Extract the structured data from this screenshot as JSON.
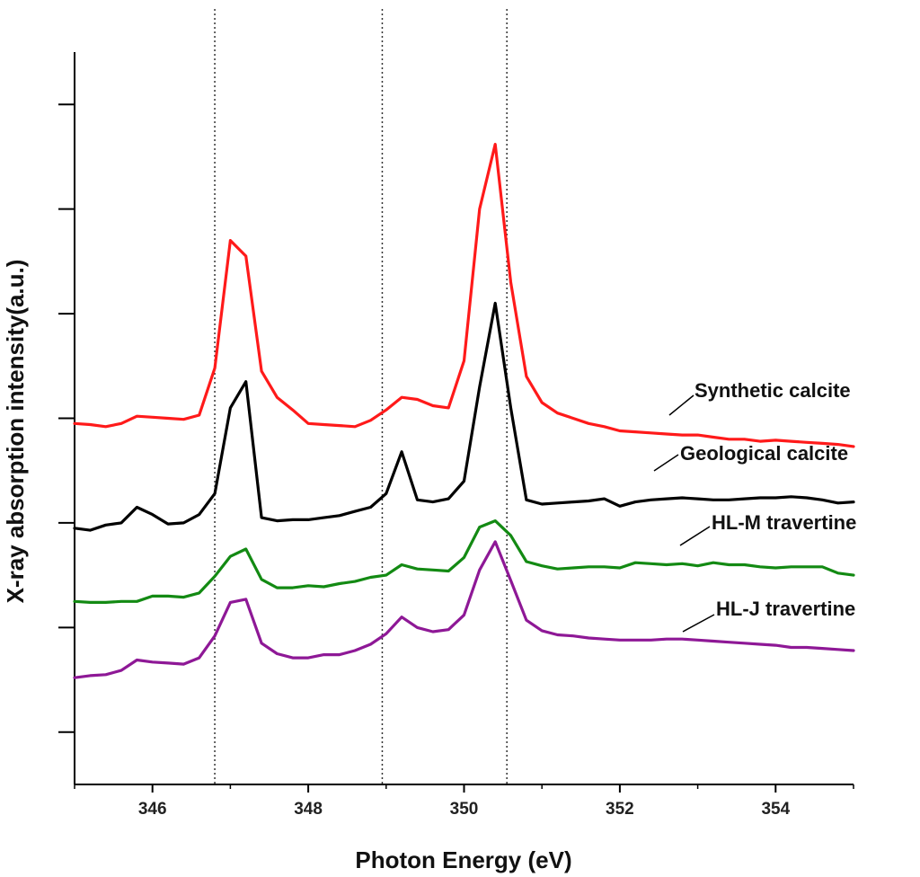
{
  "chart_data": {
    "type": "line",
    "title": "",
    "xlabel": "Photon Energy (eV)",
    "ylabel": "X-ray absorption intensity(a.u.)",
    "xlim": [
      345,
      355
    ],
    "ylim": [
      0,
      7
    ],
    "xticks": [
      346,
      348,
      350,
      352,
      354
    ],
    "yticks": [
      0.5,
      1.5,
      2.5,
      3.5,
      4.5,
      5.5,
      6.5
    ],
    "reference_lines_x": [
      346.8,
      348.95,
      350.55
    ],
    "grid": false,
    "legend": "inline-right",
    "x": [
      345.0,
      345.2,
      345.4,
      345.6,
      345.8,
      346.0,
      346.2,
      346.4,
      346.6,
      346.8,
      347.0,
      347.2,
      347.4,
      347.6,
      347.8,
      348.0,
      348.2,
      348.4,
      348.6,
      348.8,
      349.0,
      349.2,
      349.4,
      349.6,
      349.8,
      350.0,
      350.2,
      350.4,
      350.6,
      350.8,
      351.0,
      351.2,
      351.4,
      351.6,
      351.8,
      352.0,
      352.2,
      352.4,
      352.6,
      352.8,
      353.0,
      353.2,
      353.4,
      353.6,
      353.8,
      354.0,
      354.2,
      354.4,
      354.6,
      354.8,
      355.0
    ],
    "series": [
      {
        "name": "Synthetic calcite",
        "color": "#ff1a1a",
        "values": [
          3.45,
          3.44,
          3.42,
          3.45,
          3.52,
          3.51,
          3.5,
          3.49,
          3.53,
          3.98,
          5.2,
          5.05,
          3.95,
          3.7,
          3.58,
          3.45,
          3.44,
          3.43,
          3.42,
          3.48,
          3.58,
          3.7,
          3.68,
          3.62,
          3.6,
          4.05,
          5.5,
          6.12,
          4.8,
          3.9,
          3.65,
          3.55,
          3.5,
          3.45,
          3.42,
          3.38,
          3.37,
          3.36,
          3.35,
          3.34,
          3.34,
          3.32,
          3.3,
          3.3,
          3.28,
          3.29,
          3.28,
          3.27,
          3.26,
          3.25,
          3.23
        ]
      },
      {
        "name": "Geological calcite",
        "color": "#000000",
        "values": [
          2.45,
          2.43,
          2.48,
          2.5,
          2.65,
          2.58,
          2.49,
          2.5,
          2.58,
          2.78,
          3.6,
          3.85,
          2.55,
          2.52,
          2.53,
          2.53,
          2.55,
          2.57,
          2.61,
          2.65,
          2.78,
          3.18,
          2.72,
          2.7,
          2.73,
          2.9,
          3.8,
          4.6,
          3.6,
          2.72,
          2.68,
          2.69,
          2.7,
          2.71,
          2.73,
          2.66,
          2.7,
          2.72,
          2.73,
          2.74,
          2.73,
          2.72,
          2.72,
          2.73,
          2.74,
          2.74,
          2.75,
          2.74,
          2.72,
          2.69,
          2.7
        ]
      },
      {
        "name": "HL-M travertine",
        "color": "#138a13",
        "values": [
          1.75,
          1.74,
          1.74,
          1.75,
          1.75,
          1.8,
          1.8,
          1.79,
          1.83,
          1.99,
          2.18,
          2.25,
          1.96,
          1.88,
          1.88,
          1.9,
          1.89,
          1.92,
          1.94,
          1.98,
          2.0,
          2.1,
          2.06,
          2.05,
          2.04,
          2.17,
          2.46,
          2.52,
          2.38,
          2.13,
          2.09,
          2.06,
          2.07,
          2.08,
          2.08,
          2.07,
          2.12,
          2.11,
          2.1,
          2.11,
          2.09,
          2.12,
          2.1,
          2.1,
          2.08,
          2.07,
          2.08,
          2.08,
          2.08,
          2.02,
          2.0
        ]
      },
      {
        "name": "HL-J travertine",
        "color": "#8e1896",
        "values": [
          1.02,
          1.04,
          1.05,
          1.09,
          1.19,
          1.17,
          1.16,
          1.15,
          1.21,
          1.42,
          1.74,
          1.77,
          1.35,
          1.25,
          1.21,
          1.21,
          1.24,
          1.24,
          1.28,
          1.34,
          1.44,
          1.6,
          1.5,
          1.46,
          1.48,
          1.62,
          2.05,
          2.32,
          1.95,
          1.57,
          1.47,
          1.43,
          1.42,
          1.4,
          1.39,
          1.38,
          1.38,
          1.38,
          1.39,
          1.39,
          1.38,
          1.37,
          1.36,
          1.35,
          1.34,
          1.33,
          1.31,
          1.31,
          1.3,
          1.29,
          1.28
        ]
      }
    ]
  }
}
